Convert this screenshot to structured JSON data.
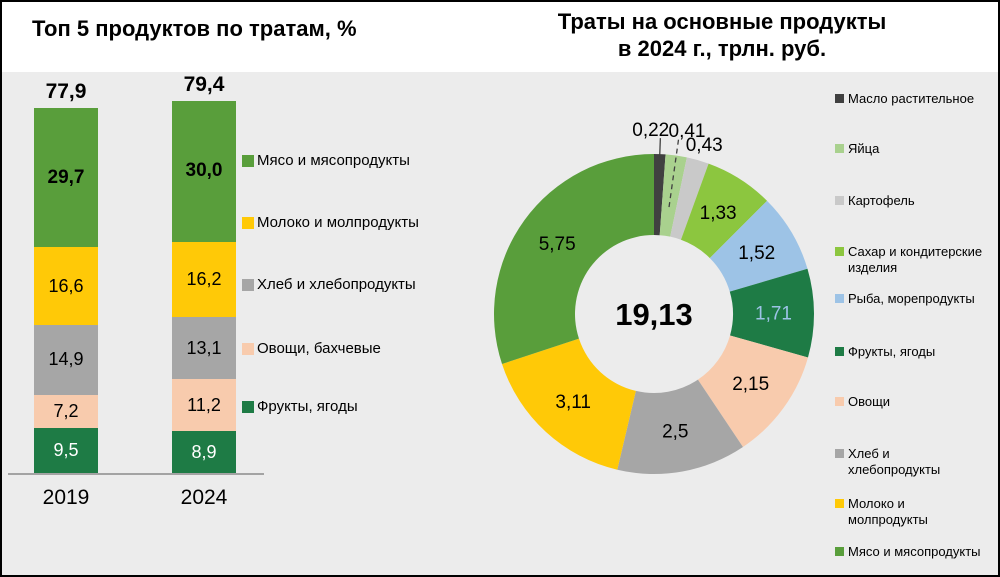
{
  "colors": {
    "panel_bg": "#ECECEC",
    "border": "#000000",
    "axis_line": "#A3A3A3",
    "green": "#599E3B",
    "yellow": "#FFC907",
    "gray": "#A6A6A6",
    "peach": "#F8CBAD",
    "dark_green": "#1E7B45",
    "dark": "#404040",
    "light_green": "#A9D18E",
    "light_gray": "#C9C9C9",
    "yellow_green": "#8CC63F",
    "light_blue": "#9DC3E6"
  },
  "chart_data": [
    {
      "type": "bar",
      "stacked": true,
      "title": "Топ 5 продуктов по тратам, %",
      "categories": [
        "2019",
        "2024"
      ],
      "totals": [
        77.9,
        79.4
      ],
      "total_labels": [
        "77,9",
        "79,4"
      ],
      "ylim": [
        0,
        80
      ],
      "grid": false,
      "legend_position": "right",
      "series": [
        {
          "name": "Мясо и мясопродукты",
          "color": "#599E3B",
          "values": [
            29.7,
            30.0
          ],
          "labels": [
            "29,7",
            "30,0"
          ],
          "label_color": "#000000",
          "label_bold": true
        },
        {
          "name": "Молоко и молпродукты",
          "color": "#FFC907",
          "values": [
            16.6,
            16.2
          ],
          "labels": [
            "16,6",
            "16,2"
          ],
          "label_color": "#000000",
          "label_bold": false
        },
        {
          "name": "Хлеб и хлебопродукты",
          "color": "#A6A6A6",
          "values": [
            14.9,
            13.1
          ],
          "labels": [
            "14,9",
            "13,1"
          ],
          "label_color": "#000000",
          "label_bold": false
        },
        {
          "name": "Овощи, бахчевые",
          "color": "#F8CBAD",
          "values": [
            7.2,
            11.2
          ],
          "labels": [
            "7,2",
            "11,2"
          ],
          "label_color": "#000000",
          "label_bold": false
        },
        {
          "name": "Фрукты, ягоды",
          "color": "#1E7B45",
          "values": [
            9.5,
            8.9
          ],
          "labels": [
            "9,5",
            "8,9"
          ],
          "label_color": "#FFFFFF",
          "label_bold": false
        }
      ]
    },
    {
      "type": "donut",
      "title": "Траты на основные продукты в 2024 г., трлн. руб.",
      "title_lines": [
        "Траты на основные продукты",
        "в 2024 г., трлн. руб."
      ],
      "center_total": 19.13,
      "center_label": "19,13",
      "legend_position": "right",
      "slices": [
        {
          "name": "Масло растительное",
          "value": 0.22,
          "label": "0,22",
          "color": "#404040",
          "label_placement": "outside",
          "leader": "solid",
          "label_color": "#000000"
        },
        {
          "name": "Яйца",
          "value": 0.41,
          "label": "0,41",
          "color": "#A9D18E",
          "label_placement": "outside",
          "leader": "dashed",
          "label_color": "#000000"
        },
        {
          "name": "Картофель",
          "value": 0.43,
          "label": "0,43",
          "color": "#C9C9C9",
          "label_placement": "outside",
          "leader": "none",
          "label_color": "#000000"
        },
        {
          "name": "Сахар и кондитерские изделия",
          "value": 1.33,
          "label": "1,33",
          "color": "#8CC63F",
          "label_placement": "inside",
          "leader": "none",
          "label_color": "#000000"
        },
        {
          "name": "Рыба, морепродукты",
          "value": 1.52,
          "label": "1,52",
          "color": "#9DC3E6",
          "label_placement": "inside",
          "leader": "none",
          "label_color": "#000000"
        },
        {
          "name": "Фрукты, ягоды",
          "value": 1.71,
          "label": "1,71",
          "color": "#1E7B45",
          "label_placement": "inside",
          "leader": "none",
          "label_color": "#9DC3E6"
        },
        {
          "name": "Овощи",
          "value": 2.15,
          "label": "2,15",
          "color": "#F8CBAD",
          "label_placement": "inside",
          "leader": "none",
          "label_color": "#000000"
        },
        {
          "name": "Хлеб и хлебопродукты",
          "value": 2.5,
          "label": "2,5",
          "color": "#A6A6A6",
          "label_placement": "inside",
          "leader": "none",
          "label_color": "#000000"
        },
        {
          "name": "Молоко и молпродукты",
          "value": 3.11,
          "label": "3,11",
          "color": "#FFC907",
          "label_placement": "inside",
          "leader": "none",
          "label_color": "#000000"
        },
        {
          "name": "Мясо и мясопродукты",
          "value": 5.75,
          "label": "5,75",
          "color": "#599E3B",
          "label_placement": "inside",
          "leader": "none",
          "label_color": "#000000"
        }
      ],
      "legend": [
        {
          "lines": [
            "Масло растительное"
          ],
          "color": "#404040"
        },
        {
          "lines": [
            "Яйца"
          ],
          "color": "#A9D18E"
        },
        {
          "lines": [
            "Картофель"
          ],
          "color": "#C9C9C9"
        },
        {
          "lines": [
            "Сахар и кондитерские",
            "изделия"
          ],
          "color": "#8CC63F"
        },
        {
          "lines": [
            "Рыба, морепродукты"
          ],
          "color": "#9DC3E6"
        },
        {
          "lines": [
            "Фрукты, ягоды"
          ],
          "color": "#1E7B45"
        },
        {
          "lines": [
            "Овощи"
          ],
          "color": "#F8CBAD"
        },
        {
          "lines": [
            "Хлеб и",
            "хлебопродукты"
          ],
          "color": "#A6A6A6"
        },
        {
          "lines": [
            "Молоко и",
            "молпродукты"
          ],
          "color": "#FFC907"
        },
        {
          "lines": [
            "Мясо и мясопродукты"
          ],
          "color": "#599E3B"
        }
      ]
    }
  ]
}
